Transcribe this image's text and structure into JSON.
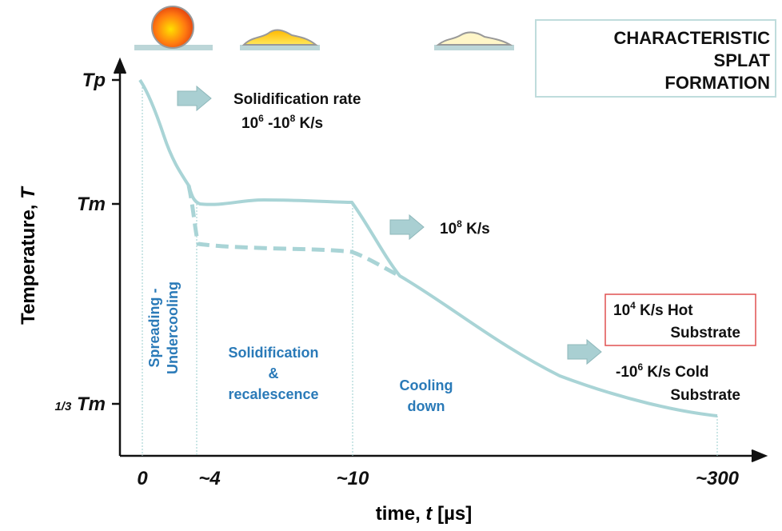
{
  "title": {
    "lines": [
      "CHARACTERISTIC",
      "SPLAT",
      "FORMATION"
    ]
  },
  "y_axis": {
    "label": "Temperature,",
    "symbol": "T",
    "ticks": [
      "Tp",
      "Tm",
      "Tm"
    ],
    "tick_prefix": "1/3"
  },
  "x_axis": {
    "label": "time,",
    "symbol": "t",
    "unit": "[µs]",
    "ticks": [
      "0",
      "~4",
      "~10",
      "~300"
    ]
  },
  "annotations": {
    "rate1": {
      "line1": "Solidification rate",
      "base1": "10",
      "exp1": "6",
      "mid": " -10",
      "exp2": "8",
      "unit": " K/s"
    },
    "rate2": {
      "base": "10",
      "exp": "8",
      "unit": " K/s"
    },
    "hot": {
      "base": "10",
      "exp": "4",
      "unit": " K/s  Hot",
      "line2": "Substrate"
    },
    "cold": {
      "base": "-10",
      "exp": "6",
      "unit": " K/s Cold",
      "line2": "Substrate"
    }
  },
  "phases": {
    "spreading": [
      "Spreading -",
      "Undercooling"
    ],
    "solidification": [
      "Solidification",
      "&",
      "recalescence"
    ],
    "cooling": [
      "Cooling",
      "down"
    ]
  }
}
